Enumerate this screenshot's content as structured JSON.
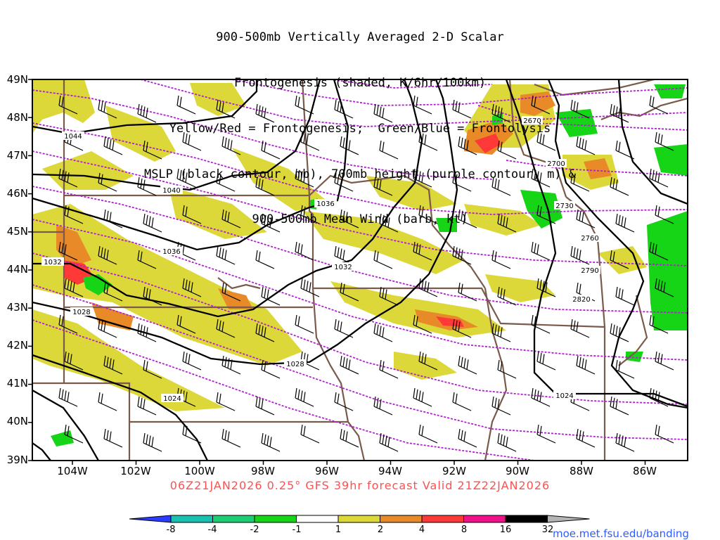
{
  "title_lines": [
    "900-500mb Vertically Averaged 2-D Scalar",
    "Frontogenesis (shaded, K/6hr/100km)",
    "Yellow/Red = Frontogenesis;  Green/Blue = Frontolysis",
    "MSLP (black contour, mb), 700mb height (purple contour, m) &",
    "900-500mb Mean Wind (barb, kt)"
  ],
  "latitude_labels": [
    "49N",
    "48N",
    "47N",
    "46N",
    "45N",
    "44N",
    "43N",
    "42N",
    "41N",
    "40N",
    "39N"
  ],
  "longitude_labels": [
    "104W",
    "102W",
    "100W",
    "98W",
    "96W",
    "94W",
    "92W",
    "90W",
    "88W",
    "86W"
  ],
  "valid_text": "06Z21JAN2026 0.25° GFS 39hr forecast Valid 21Z22JAN2026",
  "colorbar": {
    "labels": [
      "-8",
      "-4",
      "-2",
      "-1",
      "1",
      "2",
      "4",
      "8",
      "16",
      "32"
    ],
    "colors": [
      "#2a3cff",
      "#19c2b0",
      "#1dcf72",
      "#16d416",
      "#ffffff",
      "#dcd83a",
      "#e88a28",
      "#ff3838",
      "#f0108a",
      "#000000",
      "#b4b4b4"
    ]
  },
  "mslp_labels": [
    "1044",
    "1040",
    "1036",
    "1036",
    "1032",
    "1032",
    "1028",
    "1028",
    "1024",
    "1024"
  ],
  "height_labels": [
    "2670",
    "2700",
    "2730",
    "2760",
    "2790",
    "2820"
  ],
  "colors": {
    "mslp": "#000000",
    "height": "#b020d0",
    "borders": "#7a5a4a",
    "frontogenesis_weak": "#dcd83a",
    "frontogenesis_moderate": "#e88a28",
    "frontogenesis_strong": "#ff3838",
    "frontolysis": "#16d416"
  },
  "credit": "moe.met.fsu.edu/banding"
}
